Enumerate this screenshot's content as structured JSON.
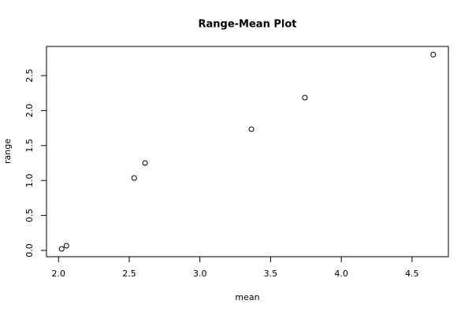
{
  "chart_data": {
    "type": "scatter",
    "title": "Range-Mean Plot",
    "x_label": "mean",
    "y_label": "range",
    "x": [
      2.022,
      2.056,
      2.535,
      2.612,
      3.364,
      3.742,
      4.65
    ],
    "values": [
      0.023,
      0.068,
      1.036,
      1.25,
      1.734,
      2.185,
      2.8
    ],
    "color": "#000000",
    "xlim": [
      1.915,
      4.757
    ],
    "ylim": [
      -0.09,
      2.917
    ],
    "xticks": [
      {
        "value": 2,
        "label": "2.0"
      },
      {
        "value": 2.5,
        "label": "2.5"
      },
      {
        "value": 3,
        "label": "3.0"
      },
      {
        "value": 3.5,
        "label": "3.5"
      },
      {
        "value": 4,
        "label": "4.0"
      },
      {
        "value": 4.5,
        "label": "4.5"
      }
    ],
    "yticks": [
      {
        "value": 0,
        "label": "0.0"
      },
      {
        "value": 0.5,
        "label": "0.5"
      },
      {
        "value": 1,
        "label": "1.0"
      },
      {
        "value": 1.5,
        "label": "1.5"
      },
      {
        "value": 2,
        "label": "2.0"
      },
      {
        "value": 2.5,
        "label": "2.5"
      }
    ]
  }
}
